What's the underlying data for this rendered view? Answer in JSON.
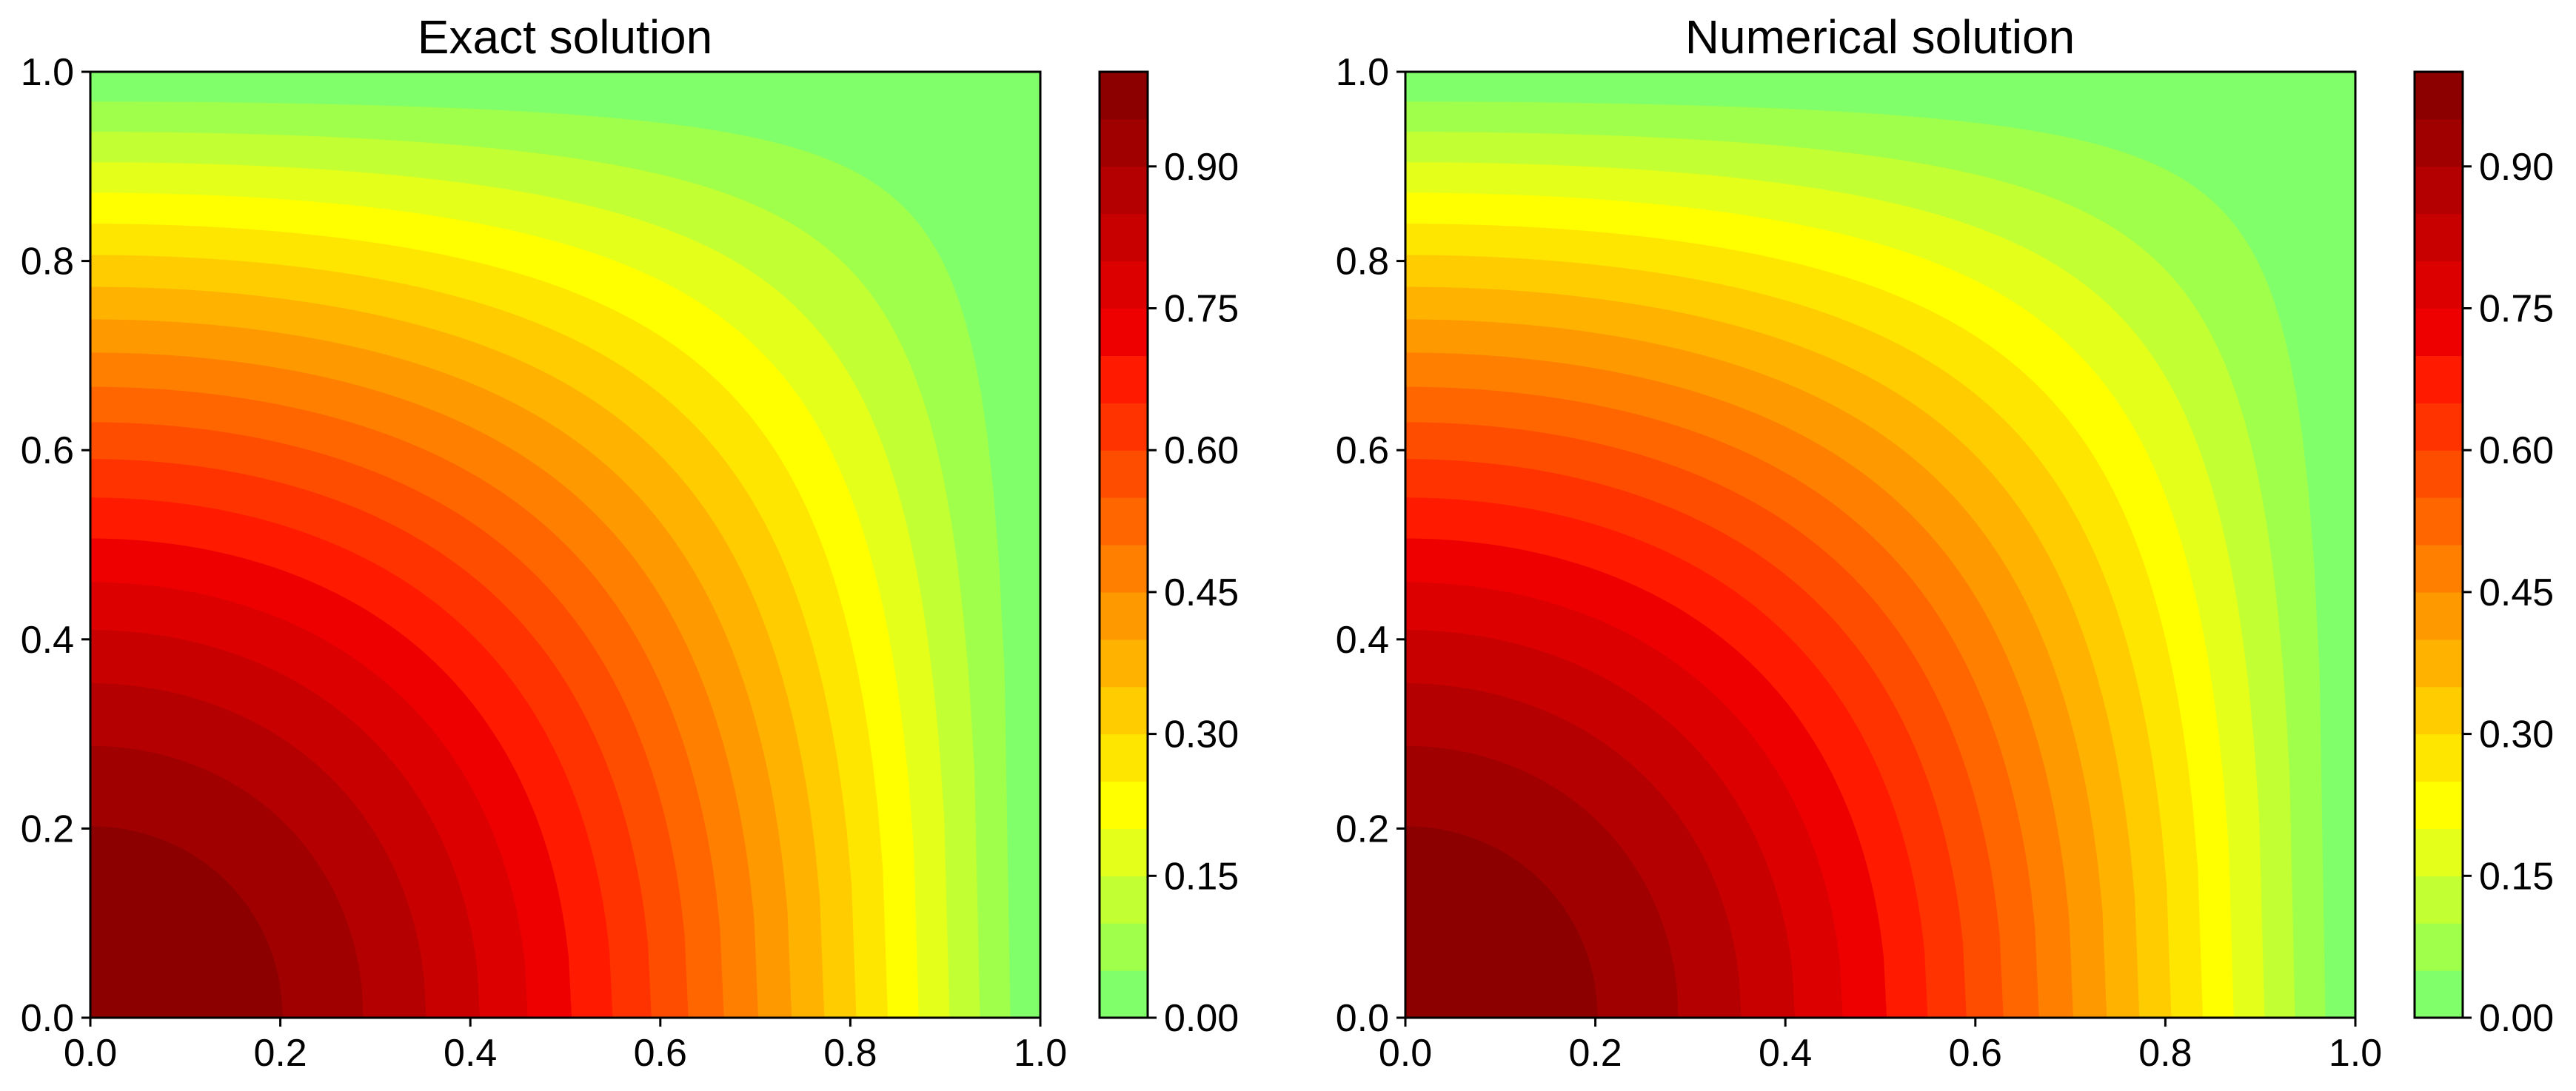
{
  "chart_data": [
    {
      "type": "heatmap",
      "subtype": "filled-contour",
      "title": "Exact solution",
      "xlim": [
        0.0,
        1.0
      ],
      "ylim": [
        0.0,
        1.0
      ],
      "x_ticks": [
        "0.0",
        "0.2",
        "0.4",
        "0.6",
        "0.8",
        "1.0"
      ],
      "y_ticks": [
        "0.0",
        "0.2",
        "0.4",
        "0.6",
        "0.8",
        "1.0"
      ],
      "function": "u(x,y) = cos(pi*x/2) * cos(pi*y/2)",
      "levels": [
        0.0,
        0.05,
        0.1,
        0.15,
        0.2,
        0.25,
        0.3,
        0.35,
        0.4,
        0.45,
        0.5,
        0.55,
        0.6,
        0.65,
        0.7,
        0.75,
        0.8,
        0.85,
        0.9,
        0.95,
        1.0
      ],
      "colorbar": {
        "range": [
          0.0,
          1.0
        ],
        "tick_values": [
          0.0,
          0.15,
          0.3,
          0.45,
          0.6,
          0.75,
          0.9
        ],
        "tick_labels": [
          "0.00",
          "0.15",
          "0.30",
          "0.45",
          "0.60",
          "0.75",
          "0.90"
        ]
      },
      "colormap": [
        "#80ff6a",
        "#a0ff4a",
        "#c2ff33",
        "#e4ff1a",
        "#ffff00",
        "#ffe600",
        "#ffcc00",
        "#ffb300",
        "#ff9900",
        "#ff8000",
        "#ff6600",
        "#ff4d00",
        "#ff3300",
        "#ff1a00",
        "#ef0000",
        "#dc0000",
        "#c80000",
        "#b40000",
        "#a00000",
        "#8c0000"
      ],
      "grid": false
    },
    {
      "type": "heatmap",
      "subtype": "filled-contour",
      "title": "Numerical solution",
      "xlim": [
        0.0,
        1.0
      ],
      "ylim": [
        0.0,
        1.0
      ],
      "x_ticks": [
        "0.0",
        "0.2",
        "0.4",
        "0.6",
        "0.8",
        "1.0"
      ],
      "y_ticks": [
        "0.0",
        "0.2",
        "0.4",
        "0.6",
        "0.8",
        "1.0"
      ],
      "function": "u(x,y) = cos(pi*x/2) * cos(pi*y/2)",
      "levels": [
        0.0,
        0.05,
        0.1,
        0.15,
        0.2,
        0.25,
        0.3,
        0.35,
        0.4,
        0.45,
        0.5,
        0.55,
        0.6,
        0.65,
        0.7,
        0.75,
        0.8,
        0.85,
        0.9,
        0.95,
        1.0
      ],
      "colorbar": {
        "range": [
          0.0,
          1.0
        ],
        "tick_values": [
          0.0,
          0.15,
          0.3,
          0.45,
          0.6,
          0.75,
          0.9
        ],
        "tick_labels": [
          "0.00",
          "0.15",
          "0.30",
          "0.45",
          "0.60",
          "0.75",
          "0.90"
        ]
      },
      "colormap": [
        "#80ff6a",
        "#a0ff4a",
        "#c2ff33",
        "#e4ff1a",
        "#ffff00",
        "#ffe600",
        "#ffcc00",
        "#ffb300",
        "#ff9900",
        "#ff8000",
        "#ff6600",
        "#ff4d00",
        "#ff3300",
        "#ff1a00",
        "#ef0000",
        "#dc0000",
        "#c80000",
        "#b40000",
        "#a00000",
        "#8c0000"
      ],
      "grid": false
    }
  ]
}
